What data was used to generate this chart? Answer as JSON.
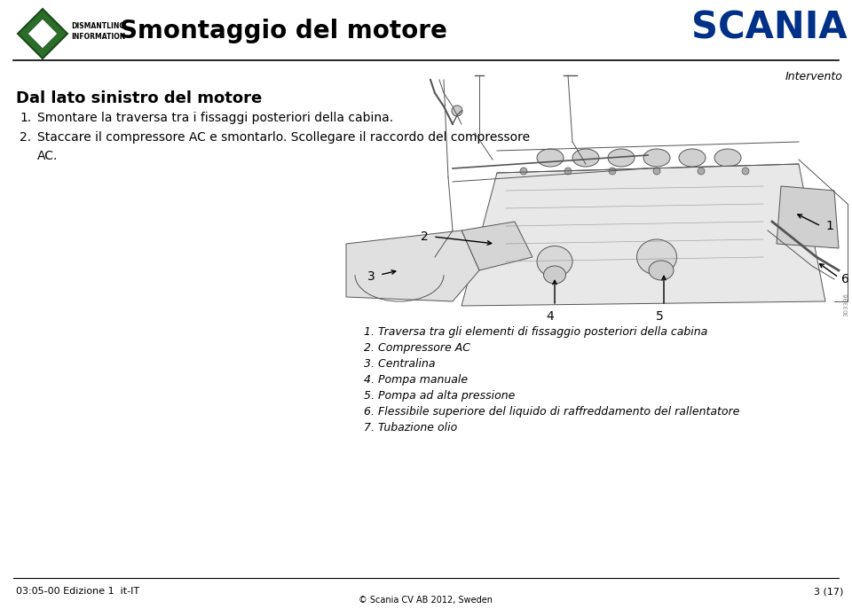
{
  "bg_color": "#ffffff",
  "title": "Smontaggio del motore",
  "title_fontsize": 20,
  "scania_text": "SCANIA",
  "scania_fontsize": 30,
  "scania_color": "#003087",
  "intervento_text": "Intervento",
  "intervento_fontsize": 9,
  "section_title": "Dal lato sinistro del motore",
  "section_title_fontsize": 13,
  "body_items": [
    {
      "num": "1.",
      "text": "Smontare la traversa tra i fissaggi posteriori della cabina."
    },
    {
      "num": "2.",
      "text": "Staccare il compressore AC e smontarlo. Scollegare il raccordo del compressore\nAC."
    }
  ],
  "body_fontsize": 10,
  "caption_lines": [
    "1. Traversa tra gli elementi di fissaggio posteriori della cabina",
    "2. Compressore AC",
    "3. Centralina",
    "4. Pompa manuale",
    "5. Pompa ad alta pressione",
    "6. Flessibile superiore del liquido di raffreddamento del rallentatore",
    "7. Tubazione olio"
  ],
  "caption_fontsize": 9,
  "footer_left": "03:05-00 Edizione 1  it-IT",
  "footer_right": "3 (17)",
  "footer_fontsize": 8,
  "copyright_text": "© Scania CV AB 2012, Sweden",
  "copyright_fontsize": 7,
  "doc_number": "303396"
}
